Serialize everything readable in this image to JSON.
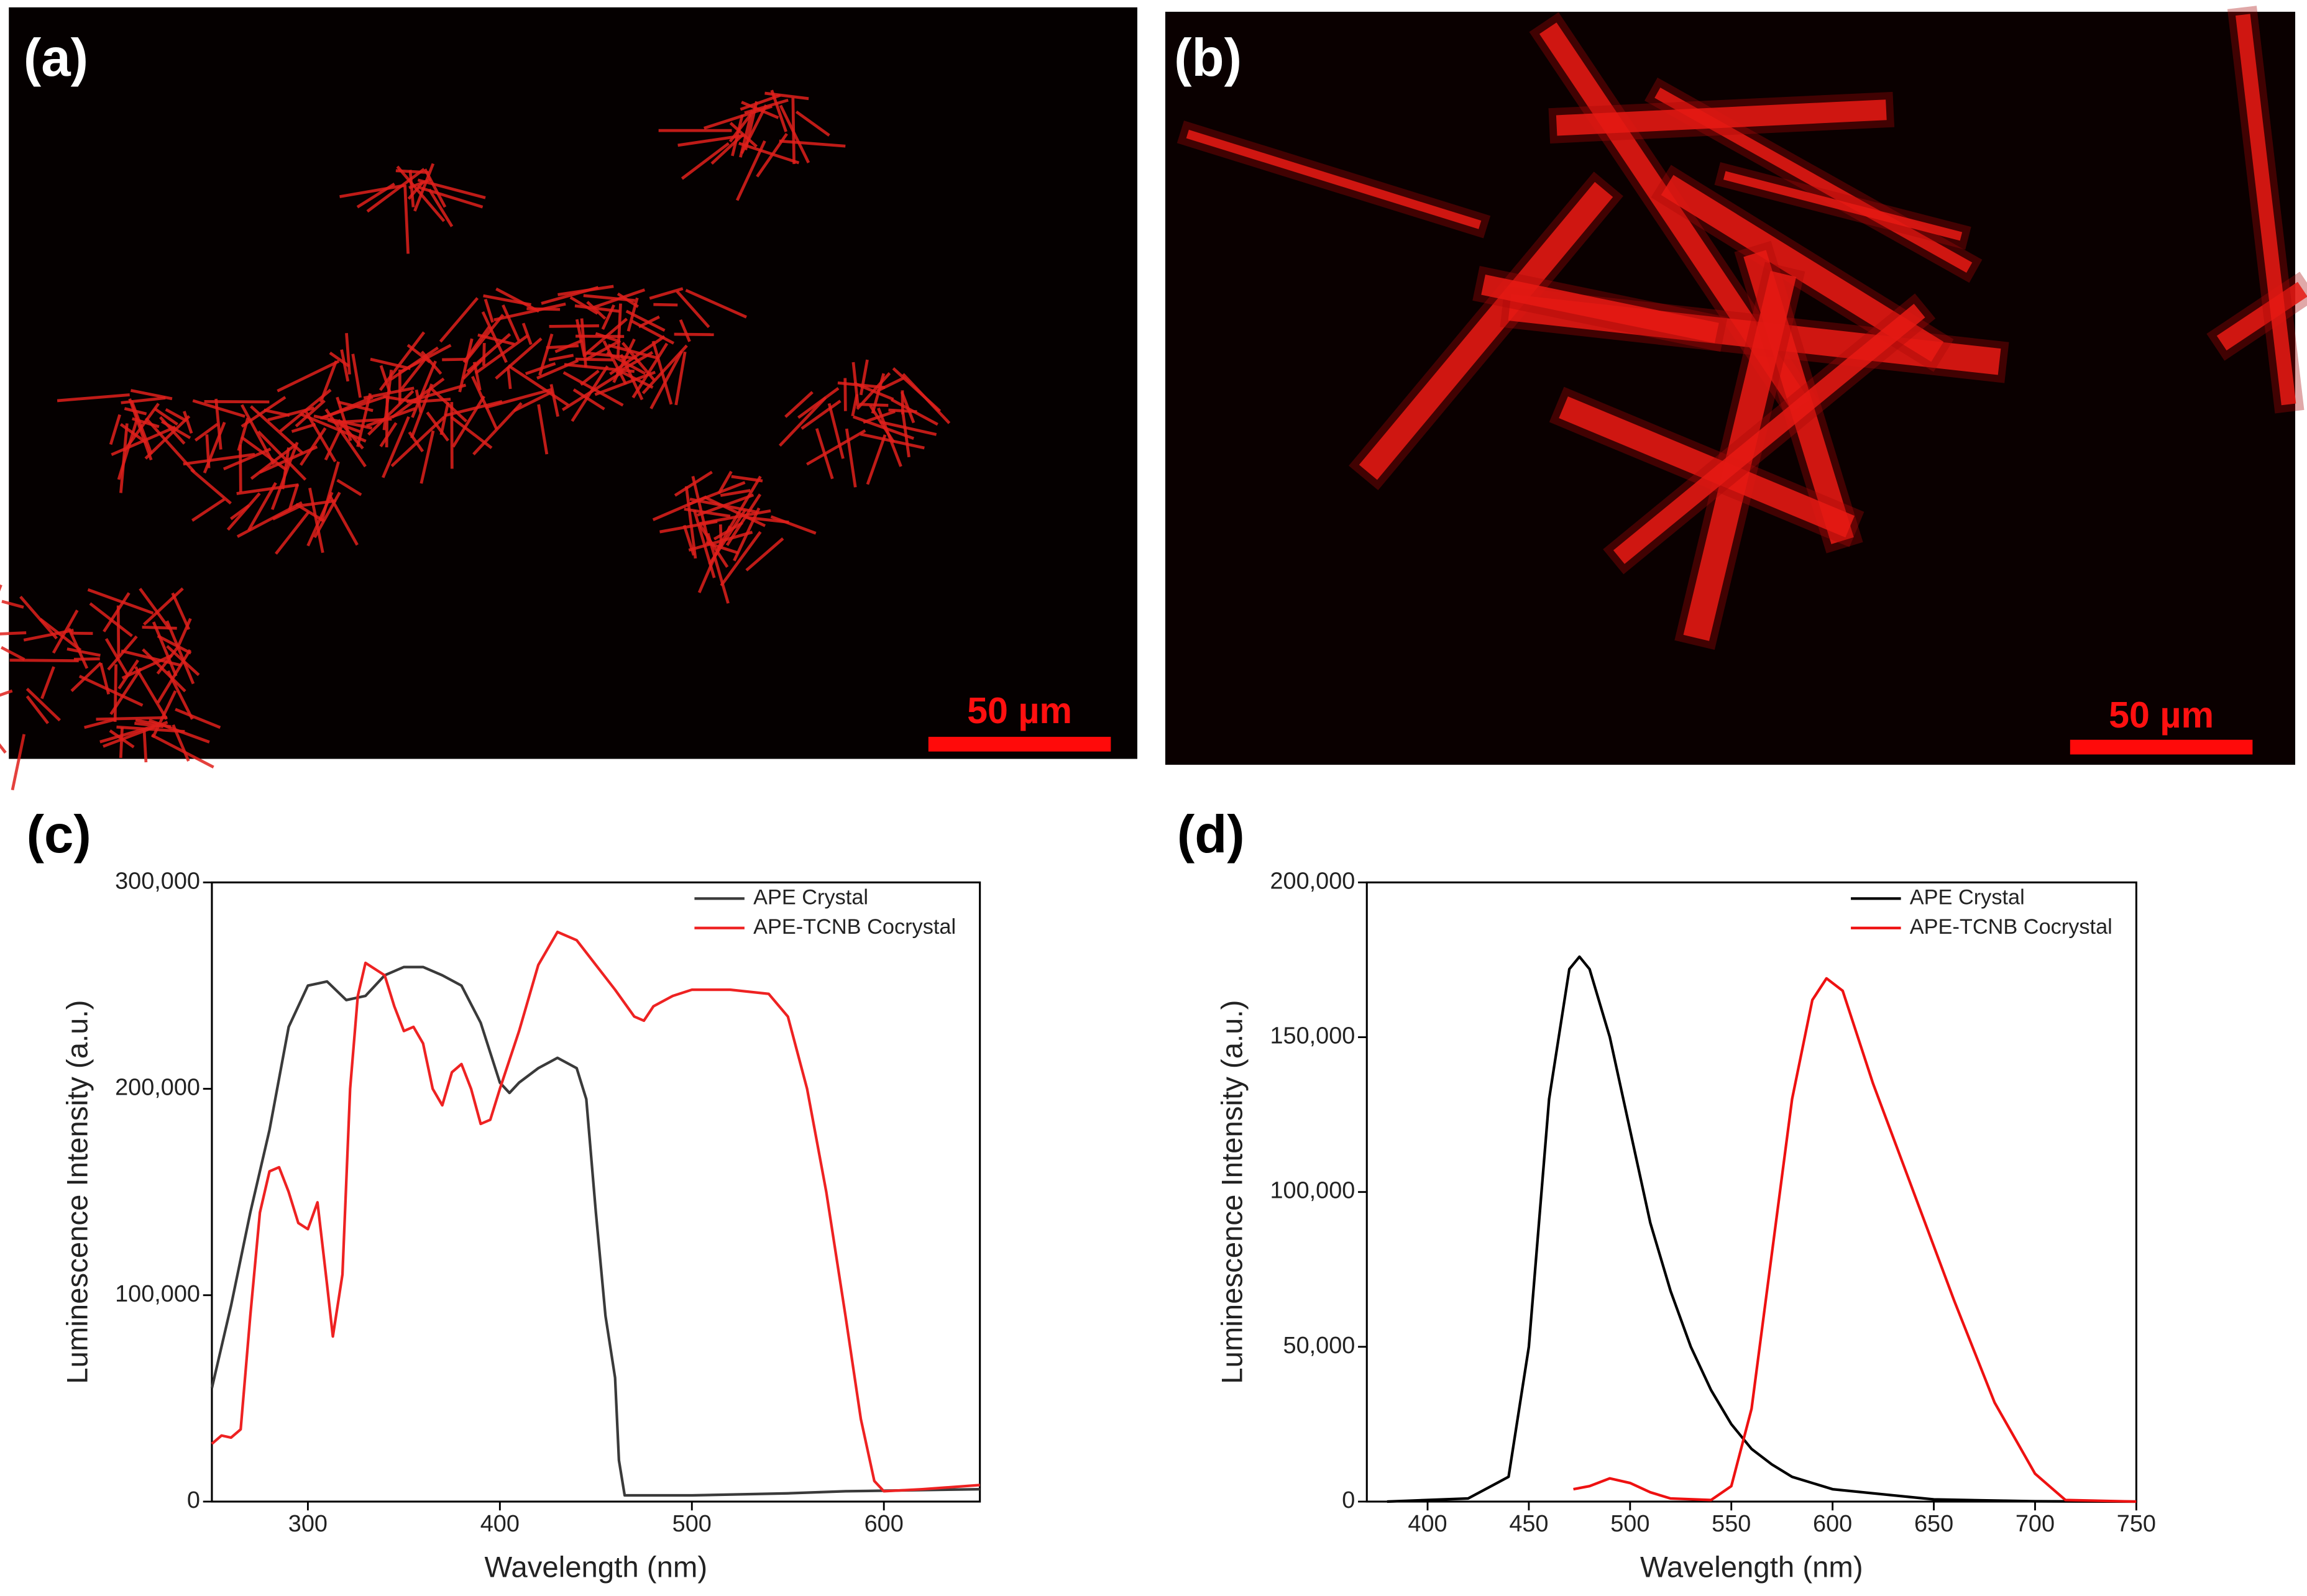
{
  "panels": [
    {
      "label": "(a)",
      "scale_bar": "50 µm"
    },
    {
      "label": "(b)",
      "scale_bar": "50 µm"
    }
  ],
  "chart_data": [
    {
      "type": "line",
      "label": "(c)",
      "x_label": "Wavelength (nm)",
      "y_label": "Luminescence Intensity (a.u.)",
      "xlim": [
        250,
        650
      ],
      "xticks": [
        300,
        400,
        500,
        600
      ],
      "ylim": [
        0,
        300000
      ],
      "yticks": [
        0,
        {
          "value": 100000,
          "label": "100,000"
        },
        {
          "value": 200000,
          "label": "200,000"
        },
        {
          "value": 300000,
          "label": "300,000"
        }
      ],
      "legend": "upper right",
      "series": [
        {
          "name": "APE Crystal",
          "color": "#3a3a3a",
          "x": [
            250,
            260,
            270,
            280,
            290,
            300,
            310,
            320,
            330,
            340,
            350,
            360,
            370,
            380,
            390,
            400,
            405,
            410,
            420,
            430,
            440,
            445,
            450,
            455,
            460,
            462,
            465,
            500,
            550,
            580,
            650
          ],
          "values": [
            55000,
            95000,
            140000,
            180000,
            230000,
            250000,
            252000,
            243000,
            245000,
            255000,
            259000,
            259000,
            255000,
            250000,
            232000,
            203000,
            198000,
            203000,
            210000,
            215000,
            210000,
            195000,
            140000,
            90000,
            60000,
            20000,
            3000,
            3000,
            4000,
            5000,
            6000
          ]
        },
        {
          "name": "APE-TCNB Cocrystal",
          "color": "#ee2222",
          "x": [
            250,
            255,
            260,
            265,
            270,
            275,
            280,
            285,
            290,
            295,
            300,
            305,
            310,
            313,
            318,
            322,
            326,
            330,
            340,
            345,
            350,
            355,
            360,
            365,
            370,
            375,
            380,
            385,
            390,
            395,
            400,
            410,
            420,
            430,
            440,
            450,
            460,
            470,
            475,
            480,
            490,
            500,
            520,
            540,
            550,
            560,
            570,
            580,
            588,
            595,
            600,
            620,
            650
          ],
          "values": [
            28000,
            32000,
            31000,
            35000,
            90000,
            140000,
            160000,
            162000,
            150000,
            135000,
            132000,
            145000,
            105000,
            80000,
            110000,
            200000,
            245000,
            261000,
            255000,
            240000,
            228000,
            230000,
            222000,
            200000,
            192000,
            208000,
            212000,
            200000,
            183000,
            185000,
            200000,
            228000,
            260000,
            276000,
            272000,
            260000,
            248000,
            235000,
            233000,
            240000,
            245000,
            248000,
            248000,
            246000,
            235000,
            200000,
            150000,
            90000,
            40000,
            10000,
            5000,
            6000,
            8000
          ]
        }
      ]
    },
    {
      "type": "line",
      "label": "(d)",
      "x_label": "Wavelength (nm)",
      "y_label": "Luminescence Intensity (a.u.)",
      "xlim": [
        370,
        750
      ],
      "xticks": [
        400,
        450,
        500,
        550,
        600,
        650,
        700,
        750
      ],
      "ylim": [
        0,
        200000
      ],
      "yticks": [
        0,
        {
          "value": 50000,
          "label": "50,000"
        },
        {
          "value": 100000,
          "label": "100,000"
        },
        {
          "value": 150000,
          "label": "150,000"
        },
        {
          "value": 200000,
          "label": "200,000"
        }
      ],
      "legend": "upper right",
      "series": [
        {
          "name": "APE Crystal",
          "color": "#000000",
          "x": [
            380,
            420,
            440,
            450,
            460,
            470,
            475,
            480,
            490,
            500,
            510,
            520,
            530,
            540,
            550,
            560,
            570,
            580,
            600,
            650,
            700,
            750
          ],
          "values": [
            0,
            1000,
            8000,
            50000,
            130000,
            172000,
            176000,
            172000,
            150000,
            120000,
            90000,
            68000,
            50000,
            36000,
            25000,
            17000,
            12000,
            8000,
            4000,
            700,
            100,
            0
          ]
        },
        {
          "name": "APE-TCNB Cocrystal",
          "color": "#ee1111",
          "x": [
            472,
            480,
            490,
            500,
            510,
            520,
            540,
            550,
            560,
            570,
            580,
            590,
            597,
            605,
            620,
            640,
            660,
            680,
            700,
            715,
            750
          ],
          "values": [
            4000,
            5000,
            7500,
            6000,
            3000,
            1000,
            500,
            5000,
            30000,
            80000,
            130000,
            162000,
            169000,
            165000,
            135000,
            100000,
            65000,
            32000,
            9000,
            500,
            0
          ]
        }
      ]
    }
  ]
}
